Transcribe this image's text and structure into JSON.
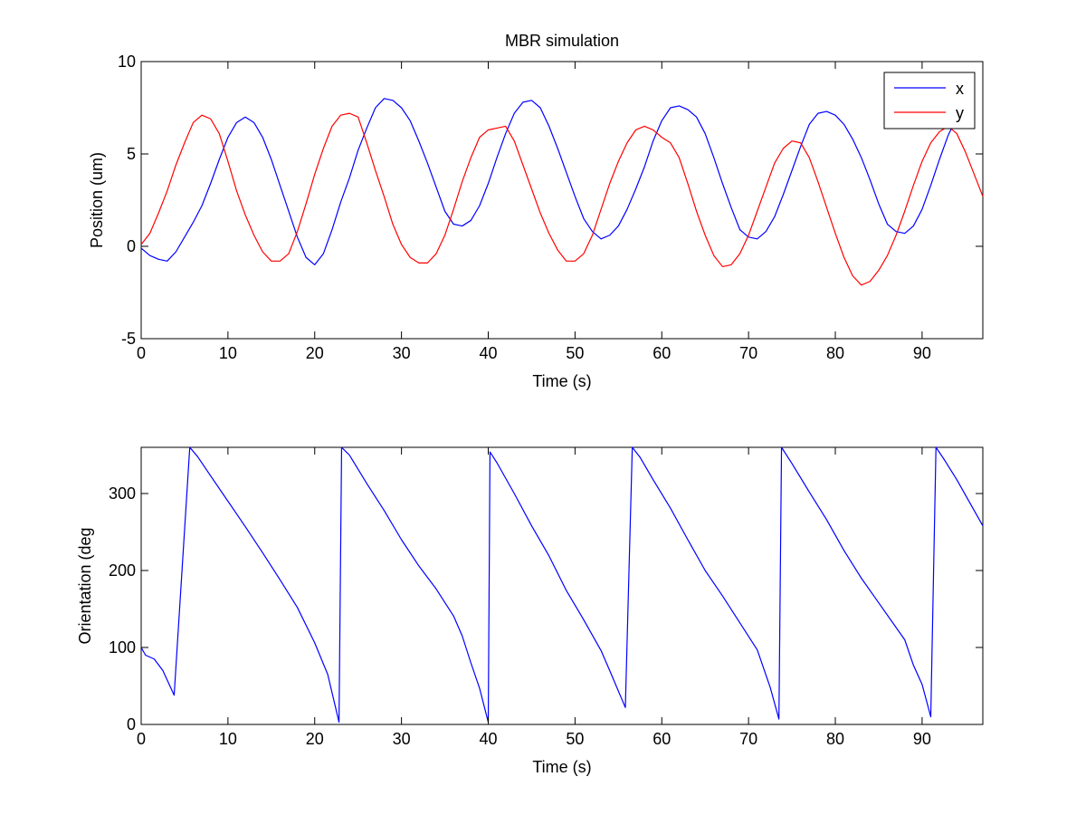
{
  "chart_data": [
    {
      "type": "line",
      "title": "MBR simulation",
      "xlabel": "Time (s)",
      "ylabel": "Position (um)",
      "xlim": [
        0,
        97
      ],
      "ylim": [
        -5,
        10
      ],
      "xticks": [
        0,
        10,
        20,
        30,
        40,
        50,
        60,
        70,
        80,
        90
      ],
      "yticks": [
        -5,
        0,
        5,
        10
      ],
      "grid": false,
      "legend": {
        "position": "top-right",
        "entries": [
          "x",
          "y"
        ]
      },
      "series": [
        {
          "name": "x",
          "color": "#0000ff",
          "points": [
            [
              0,
              -0.1
            ],
            [
              1,
              -0.5
            ],
            [
              2,
              -0.7
            ],
            [
              3,
              -0.8
            ],
            [
              4,
              -0.3
            ],
            [
              5,
              0.5
            ],
            [
              6,
              1.3
            ],
            [
              7,
              2.2
            ],
            [
              8,
              3.4
            ],
            [
              9,
              4.7
            ],
            [
              10,
              5.9
            ],
            [
              11,
              6.7
            ],
            [
              12,
              7.0
            ],
            [
              13,
              6.7
            ],
            [
              14,
              5.9
            ],
            [
              15,
              4.7
            ],
            [
              16,
              3.3
            ],
            [
              17,
              1.9
            ],
            [
              18,
              0.5
            ],
            [
              19,
              -0.6
            ],
            [
              20,
              -1.0
            ],
            [
              21,
              -0.4
            ],
            [
              22,
              0.9
            ],
            [
              23,
              2.4
            ],
            [
              24,
              3.7
            ],
            [
              25,
              5.2
            ],
            [
              26,
              6.4
            ],
            [
              27,
              7.5
            ],
            [
              28,
              8.0
            ],
            [
              29,
              7.9
            ],
            [
              30,
              7.5
            ],
            [
              31,
              6.8
            ],
            [
              32,
              5.7
            ],
            [
              33,
              4.5
            ],
            [
              34,
              3.2
            ],
            [
              35,
              1.9
            ],
            [
              36,
              1.2
            ],
            [
              37,
              1.1
            ],
            [
              38,
              1.4
            ],
            [
              39,
              2.2
            ],
            [
              40,
              3.4
            ],
            [
              41,
              4.8
            ],
            [
              42,
              6.1
            ],
            [
              43,
              7.2
            ],
            [
              44,
              7.8
            ],
            [
              45,
              7.9
            ],
            [
              46,
              7.5
            ],
            [
              47,
              6.5
            ],
            [
              48,
              5.3
            ],
            [
              49,
              4.0
            ],
            [
              50,
              2.7
            ],
            [
              51,
              1.5
            ],
            [
              52,
              0.8
            ],
            [
              53,
              0.4
            ],
            [
              54,
              0.6
            ],
            [
              55,
              1.1
            ],
            [
              56,
              2.0
            ],
            [
              57,
              3.1
            ],
            [
              58,
              4.3
            ],
            [
              59,
              5.7
            ],
            [
              60,
              6.8
            ],
            [
              61,
              7.5
            ],
            [
              62,
              7.6
            ],
            [
              63,
              7.4
            ],
            [
              64,
              7.0
            ],
            [
              65,
              6.1
            ],
            [
              66,
              4.8
            ],
            [
              67,
              3.4
            ],
            [
              68,
              2.1
            ],
            [
              69,
              0.9
            ],
            [
              70,
              0.5
            ],
            [
              71,
              0.4
            ],
            [
              72,
              0.8
            ],
            [
              73,
              1.6
            ],
            [
              74,
              2.8
            ],
            [
              75,
              4.1
            ],
            [
              76,
              5.4
            ],
            [
              77,
              6.6
            ],
            [
              78,
              7.2
            ],
            [
              79,
              7.3
            ],
            [
              80,
              7.1
            ],
            [
              81,
              6.6
            ],
            [
              82,
              5.8
            ],
            [
              83,
              4.8
            ],
            [
              84,
              3.6
            ],
            [
              85,
              2.3
            ],
            [
              86,
              1.2
            ],
            [
              87,
              0.8
            ],
            [
              88,
              0.7
            ],
            [
              89,
              1.1
            ],
            [
              90,
              2.0
            ],
            [
              91,
              3.3
            ],
            [
              92,
              4.7
            ],
            [
              93,
              6.0
            ],
            [
              94,
              7.0
            ]
          ]
        },
        {
          "name": "y",
          "color": "#ff0000",
          "points": [
            [
              0,
              0.1
            ],
            [
              1,
              0.7
            ],
            [
              2,
              1.8
            ],
            [
              3,
              3.0
            ],
            [
              4,
              4.4
            ],
            [
              5,
              5.6
            ],
            [
              6,
              6.7
            ],
            [
              7,
              7.1
            ],
            [
              8,
              6.9
            ],
            [
              9,
              6.1
            ],
            [
              10,
              4.6
            ],
            [
              11,
              3.0
            ],
            [
              12,
              1.7
            ],
            [
              13,
              0.6
            ],
            [
              14,
              -0.3
            ],
            [
              15,
              -0.8
            ],
            [
              16,
              -0.8
            ],
            [
              17,
              -0.4
            ],
            [
              18,
              0.8
            ],
            [
              19,
              2.3
            ],
            [
              20,
              3.9
            ],
            [
              21,
              5.3
            ],
            [
              22,
              6.5
            ],
            [
              23,
              7.1
            ],
            [
              24,
              7.2
            ],
            [
              25,
              7.0
            ],
            [
              26,
              5.6
            ],
            [
              27,
              4.1
            ],
            [
              28,
              2.7
            ],
            [
              29,
              1.2
            ],
            [
              30,
              0.1
            ],
            [
              31,
              -0.6
            ],
            [
              32,
              -0.9
            ],
            [
              33,
              -0.9
            ],
            [
              34,
              -0.4
            ],
            [
              35,
              0.6
            ],
            [
              36,
              2.0
            ],
            [
              37,
              3.5
            ],
            [
              38,
              4.8
            ],
            [
              39,
              5.9
            ],
            [
              40,
              6.3
            ],
            [
              41,
              6.4
            ],
            [
              42,
              6.5
            ],
            [
              43,
              5.7
            ],
            [
              44,
              4.4
            ],
            [
              45,
              3.1
            ],
            [
              46,
              1.8
            ],
            [
              47,
              0.7
            ],
            [
              48,
              -0.2
            ],
            [
              49,
              -0.8
            ],
            [
              50,
              -0.8
            ],
            [
              51,
              -0.4
            ],
            [
              52,
              0.6
            ],
            [
              53,
              2.0
            ],
            [
              54,
              3.4
            ],
            [
              55,
              4.6
            ],
            [
              56,
              5.6
            ],
            [
              57,
              6.3
            ],
            [
              58,
              6.5
            ],
            [
              59,
              6.3
            ],
            [
              60,
              5.9
            ],
            [
              61,
              5.6
            ],
            [
              62,
              4.8
            ],
            [
              63,
              3.4
            ],
            [
              64,
              1.9
            ],
            [
              65,
              0.6
            ],
            [
              66,
              -0.5
            ],
            [
              67,
              -1.1
            ],
            [
              68,
              -1.0
            ],
            [
              69,
              -0.4
            ],
            [
              70,
              0.6
            ],
            [
              71,
              1.9
            ],
            [
              72,
              3.2
            ],
            [
              73,
              4.5
            ],
            [
              74,
              5.3
            ],
            [
              75,
              5.7
            ],
            [
              76,
              5.6
            ],
            [
              77,
              4.8
            ],
            [
              78,
              3.5
            ],
            [
              79,
              2.1
            ],
            [
              80,
              0.7
            ],
            [
              81,
              -0.6
            ],
            [
              82,
              -1.6
            ],
            [
              83,
              -2.1
            ],
            [
              84,
              -1.9
            ],
            [
              85,
              -1.3
            ],
            [
              86,
              -0.5
            ],
            [
              87,
              0.6
            ],
            [
              88,
              1.9
            ],
            [
              89,
              3.3
            ],
            [
              90,
              4.6
            ],
            [
              91,
              5.6
            ],
            [
              92,
              6.2
            ],
            [
              93,
              6.5
            ],
            [
              94,
              6.1
            ],
            [
              95,
              5.1
            ],
            [
              96,
              3.9
            ],
            [
              97,
              2.7
            ]
          ]
        }
      ]
    },
    {
      "type": "line",
      "title": "",
      "xlabel": "Time (s)",
      "ylabel": "Orientation (deg",
      "xlim": [
        0,
        97
      ],
      "ylim": [
        0,
        360
      ],
      "xticks": [
        0,
        10,
        20,
        30,
        40,
        50,
        60,
        70,
        80,
        90
      ],
      "yticks": [
        0,
        100,
        200,
        300
      ],
      "grid": false,
      "series": [
        {
          "color": "#0000ff",
          "points": [
            [
              0,
              100
            ],
            [
              0.5,
              90
            ],
            [
              1.5,
              85
            ],
            [
              2.5,
              70
            ],
            [
              3.8,
              38
            ],
            [
              5.6,
              360
            ],
            [
              6.5,
              348
            ],
            [
              8,
              323
            ],
            [
              10,
              290
            ],
            [
              12,
              257
            ],
            [
              14,
              223
            ],
            [
              16,
              188
            ],
            [
              18,
              152
            ],
            [
              20,
              106
            ],
            [
              21.5,
              65
            ],
            [
              22.8,
              3
            ],
            [
              23.1,
              360
            ],
            [
              24,
              350
            ],
            [
              26,
              313
            ],
            [
              28,
              278
            ],
            [
              30,
              240
            ],
            [
              32,
              206
            ],
            [
              34,
              176
            ],
            [
              36,
              141
            ],
            [
              37,
              115
            ],
            [
              38,
              80
            ],
            [
              39,
              47
            ],
            [
              40,
              3
            ],
            [
              40.2,
              354
            ],
            [
              41,
              340
            ],
            [
              43,
              300
            ],
            [
              45,
              258
            ],
            [
              47,
              219
            ],
            [
              49,
              174
            ],
            [
              51,
              136
            ],
            [
              53,
              96
            ],
            [
              54,
              70
            ],
            [
              55.8,
              22
            ],
            [
              56.6,
              360
            ],
            [
              57.5,
              347
            ],
            [
              59,
              318
            ],
            [
              61,
              281
            ],
            [
              63,
              240
            ],
            [
              65,
              200
            ],
            [
              67,
              167
            ],
            [
              69,
              132
            ],
            [
              71,
              97
            ],
            [
              72.5,
              48
            ],
            [
              73.5,
              7
            ],
            [
              73.8,
              360
            ],
            [
              75,
              339
            ],
            [
              77,
              302
            ],
            [
              79,
              266
            ],
            [
              81,
              226
            ],
            [
              83,
              190
            ],
            [
              85,
              158
            ],
            [
              87,
              126
            ],
            [
              88,
              110
            ],
            [
              89,
              77
            ],
            [
              90,
              52
            ],
            [
              91,
              10
            ],
            [
              91.6,
              360
            ],
            [
              92.5,
              345
            ],
            [
              94,
              318
            ],
            [
              96,
              278
            ],
            [
              97,
              258
            ]
          ]
        }
      ]
    }
  ]
}
